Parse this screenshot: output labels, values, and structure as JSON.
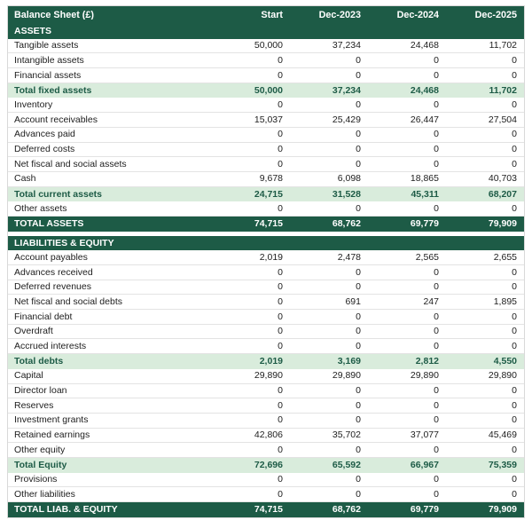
{
  "colors": {
    "dark_green": "#1d5b46",
    "subtotal_green": "#d9ecdc"
  },
  "table": {
    "header": {
      "label": "Balance Sheet (£)",
      "columns": [
        "Start",
        "Dec-2023",
        "Dec-2024",
        "Dec-2025"
      ]
    },
    "rows": [
      {
        "type": "section",
        "label": "ASSETS",
        "values": []
      },
      {
        "type": "item",
        "label": "Tangible assets",
        "values": [
          "50,000",
          "37,234",
          "24,468",
          "11,702"
        ]
      },
      {
        "type": "item",
        "label": "Intangible assets",
        "values": [
          "0",
          "0",
          "0",
          "0"
        ]
      },
      {
        "type": "item",
        "label": "Financial assets",
        "values": [
          "0",
          "0",
          "0",
          "0"
        ]
      },
      {
        "type": "subtotal",
        "label": "Total fixed assets",
        "values": [
          "50,000",
          "37,234",
          "24,468",
          "11,702"
        ]
      },
      {
        "type": "item",
        "label": "Inventory",
        "values": [
          "0",
          "0",
          "0",
          "0"
        ]
      },
      {
        "type": "item",
        "label": "Account receivables",
        "values": [
          "15,037",
          "25,429",
          "26,447",
          "27,504"
        ]
      },
      {
        "type": "item",
        "label": "Advances paid",
        "values": [
          "0",
          "0",
          "0",
          "0"
        ]
      },
      {
        "type": "item",
        "label": "Deferred costs",
        "values": [
          "0",
          "0",
          "0",
          "0"
        ]
      },
      {
        "type": "item",
        "label": "Net fiscal and social assets",
        "values": [
          "0",
          "0",
          "0",
          "0"
        ]
      },
      {
        "type": "item",
        "label": "Cash",
        "values": [
          "9,678",
          "6,098",
          "18,865",
          "40,703"
        ]
      },
      {
        "type": "subtotal",
        "label": "Total current assets",
        "values": [
          "24,715",
          "31,528",
          "45,311",
          "68,207"
        ]
      },
      {
        "type": "item",
        "label": "Other assets",
        "values": [
          "0",
          "0",
          "0",
          "0"
        ]
      },
      {
        "type": "total",
        "label": "TOTAL ASSETS",
        "values": [
          "74,715",
          "68,762",
          "69,779",
          "79,909"
        ]
      },
      {
        "type": "spacer",
        "label": "",
        "values": []
      },
      {
        "type": "section",
        "label": "LIABILITIES & EQUITY",
        "values": []
      },
      {
        "type": "item",
        "label": "Account payables",
        "values": [
          "2,019",
          "2,478",
          "2,565",
          "2,655"
        ]
      },
      {
        "type": "item",
        "label": "Advances received",
        "values": [
          "0",
          "0",
          "0",
          "0"
        ]
      },
      {
        "type": "item",
        "label": "Deferred revenues",
        "values": [
          "0",
          "0",
          "0",
          "0"
        ]
      },
      {
        "type": "item",
        "label": "Net fiscal and social debts",
        "values": [
          "0",
          "691",
          "247",
          "1,895"
        ]
      },
      {
        "type": "item",
        "label": "Financial debt",
        "values": [
          "0",
          "0",
          "0",
          "0"
        ]
      },
      {
        "type": "item",
        "label": "Overdraft",
        "values": [
          "0",
          "0",
          "0",
          "0"
        ]
      },
      {
        "type": "item",
        "label": "Accrued interests",
        "values": [
          "0",
          "0",
          "0",
          "0"
        ]
      },
      {
        "type": "subtotal",
        "label": "Total debts",
        "values": [
          "2,019",
          "3,169",
          "2,812",
          "4,550"
        ]
      },
      {
        "type": "item",
        "label": "Capital",
        "values": [
          "29,890",
          "29,890",
          "29,890",
          "29,890"
        ]
      },
      {
        "type": "item",
        "label": "Director loan",
        "values": [
          "0",
          "0",
          "0",
          "0"
        ]
      },
      {
        "type": "item",
        "label": "Reserves",
        "values": [
          "0",
          "0",
          "0",
          "0"
        ]
      },
      {
        "type": "item",
        "label": "Investment grants",
        "values": [
          "0",
          "0",
          "0",
          "0"
        ]
      },
      {
        "type": "item",
        "label": "Retained earnings",
        "values": [
          "42,806",
          "35,702",
          "37,077",
          "45,469"
        ]
      },
      {
        "type": "item",
        "label": "Other equity",
        "values": [
          "0",
          "0",
          "0",
          "0"
        ]
      },
      {
        "type": "subtotal",
        "label": "Total Equity",
        "values": [
          "72,696",
          "65,592",
          "66,967",
          "75,359"
        ]
      },
      {
        "type": "item",
        "label": "Provisions",
        "values": [
          "0",
          "0",
          "0",
          "0"
        ]
      },
      {
        "type": "item",
        "label": "Other liabilities",
        "values": [
          "0",
          "0",
          "0",
          "0"
        ]
      },
      {
        "type": "total",
        "label": "TOTAL LIAB. & EQUITY",
        "values": [
          "74,715",
          "68,762",
          "69,779",
          "79,909"
        ]
      }
    ]
  }
}
